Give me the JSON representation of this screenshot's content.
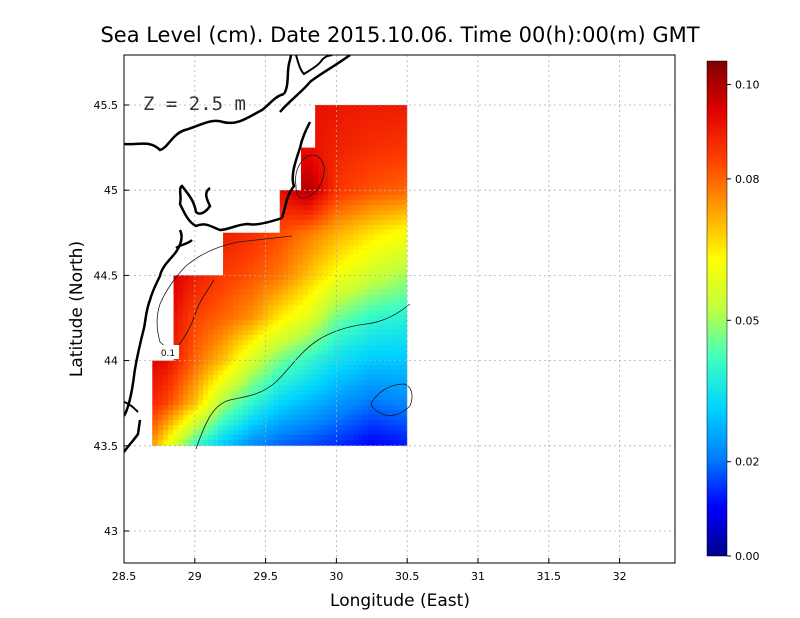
{
  "chart_data": {
    "type": "heatmap",
    "title": "Sea Level (cm). Date 2015.10.06. Time 00(h):00(m) GMT",
    "xlabel": "Longitude (East)",
    "ylabel": "Latitude (North)",
    "annotation": "Z = 2.5 m",
    "contour_label": "0.1",
    "xlim": [
      28.5,
      32.4
    ],
    "ylim": [
      42.8,
      45.8
    ],
    "xticks": [
      {
        "value": 28.5,
        "label": "28.5"
      },
      {
        "value": 29,
        "label": "29"
      },
      {
        "value": 29.5,
        "label": "29.5"
      },
      {
        "value": 30,
        "label": "30"
      },
      {
        "value": 30.5,
        "label": "30.5"
      },
      {
        "value": 31,
        "label": "31"
      },
      {
        "value": 31.5,
        "label": "31.5"
      },
      {
        "value": 32,
        "label": "32"
      }
    ],
    "yticks": [
      {
        "value": 43,
        "label": "43"
      },
      {
        "value": 43.5,
        "label": "43.5"
      },
      {
        "value": 44,
        "label": "44"
      },
      {
        "value": 44.5,
        "label": "44.5"
      },
      {
        "value": 45,
        "label": "45"
      },
      {
        "value": 45.5,
        "label": "45.5"
      }
    ],
    "grid": true,
    "colorbar": {
      "min": 0.0,
      "max": 0.105,
      "ticks": [
        {
          "value": 0.0,
          "label": "0.00"
        },
        {
          "value": 0.02,
          "label": "0.02"
        },
        {
          "value": 0.05,
          "label": "0.05"
        },
        {
          "value": 0.08,
          "label": "0.08"
        },
        {
          "value": 0.1,
          "label": "0.10"
        }
      ],
      "colors": [
        "#00008c",
        "#0000ff",
        "#0080ff",
        "#00d4ff",
        "#40ffbf",
        "#c0ff40",
        "#ffff00",
        "#ffa000",
        "#ff4000",
        "#e00000",
        "#800000"
      ]
    },
    "domain": {
      "lon": [
        28.6,
        30.5
      ],
      "lat": [
        43.5,
        45.5
      ]
    },
    "values_grid": {
      "lats": [
        43.5,
        43.75,
        44.0,
        44.25,
        44.5,
        44.75,
        45.0,
        45.25,
        45.5
      ],
      "lons": [
        28.6,
        28.8,
        29.0,
        29.2,
        29.4,
        29.6,
        29.8,
        30.0,
        30.25,
        30.5
      ],
      "values": [
        [
          0.088,
          0.062,
          0.04,
          0.03,
          0.022,
          0.018,
          0.016,
          0.014,
          0.01,
          0.012
        ],
        [
          0.092,
          0.084,
          0.07,
          0.05,
          0.04,
          0.032,
          0.028,
          0.024,
          0.02,
          0.022
        ],
        [
          0.096,
          0.092,
          0.08,
          0.07,
          0.056,
          0.046,
          0.04,
          0.034,
          0.03,
          0.03
        ],
        [
          0.099,
          0.094,
          0.084,
          0.08,
          0.075,
          0.065,
          0.058,
          0.046,
          0.04,
          0.038
        ],
        [
          0.101,
          0.097,
          0.09,
          0.085,
          0.082,
          0.078,
          0.07,
          0.062,
          0.055,
          0.05
        ],
        [
          0.102,
          0.101,
          0.093,
          0.09,
          0.087,
          0.083,
          0.078,
          0.072,
          0.066,
          0.062
        ],
        [
          0.1,
          0.099,
          0.096,
          0.094,
          0.092,
          0.092,
          0.1,
          0.086,
          0.082,
          0.08
        ],
        [
          0.098,
          0.097,
          0.096,
          0.095,
          0.094,
          0.093,
          0.092,
          0.089,
          0.087,
          0.086
        ],
        [
          0.096,
          0.096,
          0.095,
          0.095,
          0.094,
          0.093,
          0.092,
          0.091,
          0.09,
          0.09
        ]
      ]
    },
    "land_lons_by_row": [
      {
        "lat": 43.5,
        "west_edge": 28.6
      },
      {
        "lat": 44.0,
        "west_edge": 28.7
      },
      {
        "lat": 44.5,
        "west_edge": 28.85
      },
      {
        "lat": 44.75,
        "west_edge": 29.2
      },
      {
        "lat": 45.0,
        "west_edge": 29.6
      },
      {
        "lat": 45.25,
        "west_edge": 29.75
      },
      {
        "lat": 45.5,
        "west_edge": 29.85
      }
    ]
  }
}
